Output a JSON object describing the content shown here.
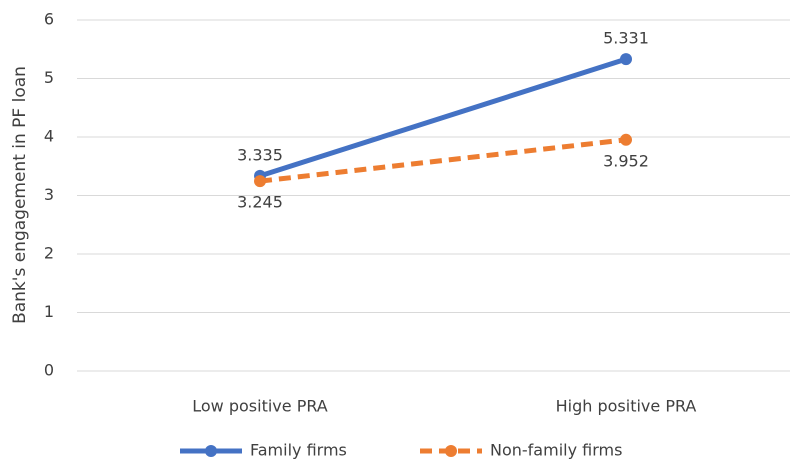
{
  "chart_data": {
    "type": "line",
    "y_label": "Bank's engagement in PF loan",
    "categories": [
      "Low positive PRA",
      "High positive PRA"
    ],
    "series": [
      {
        "name": "Family firms",
        "color": "#4472c4",
        "line_style": "solid",
        "label_position": "above",
        "values": [
          3.335,
          5.331
        ]
      },
      {
        "name": "Non-family firms",
        "color": "#ed7d31",
        "line_style": "dashed",
        "label_position": "below",
        "values": [
          3.245,
          3.952
        ]
      }
    ],
    "ylim": [
      0,
      6
    ],
    "yticks": [
      0,
      1,
      2,
      3,
      4,
      5,
      6
    ],
    "grid": true,
    "legend": "bottom"
  }
}
